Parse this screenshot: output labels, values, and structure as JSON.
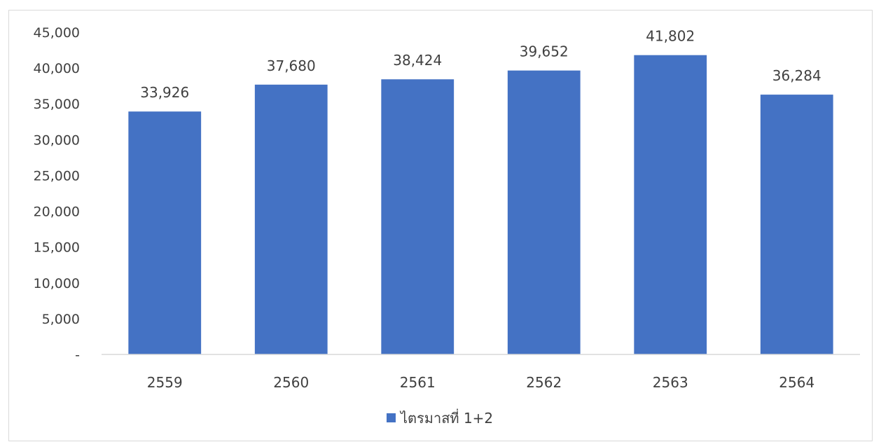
{
  "chart_data": {
    "type": "bar",
    "categories": [
      "2559",
      "2560",
      "2561",
      "2562",
      "2563",
      "2564"
    ],
    "series": [
      {
        "name": "ไตรมาสที่ 1+2",
        "values": [
          33926,
          37680,
          38424,
          39652,
          41802,
          36284
        ],
        "color": "#4472c4"
      }
    ],
    "data_labels": [
      "33,926",
      "37,680",
      "38,424",
      "39,652",
      "41,802",
      "36,284"
    ],
    "yticks": [
      0,
      5000,
      10000,
      15000,
      20000,
      25000,
      30000,
      35000,
      40000,
      45000
    ],
    "ytick_labels": [
      "-",
      "5,000",
      "10,000",
      "15,000",
      "20,000",
      "25,000",
      "30,000",
      "35,000",
      "40,000",
      "45,000"
    ],
    "ylim": [
      0,
      45000
    ],
    "grid": false,
    "legend_position": "bottom",
    "axis_color": "#d9d9d9",
    "text_color": "#404040"
  }
}
